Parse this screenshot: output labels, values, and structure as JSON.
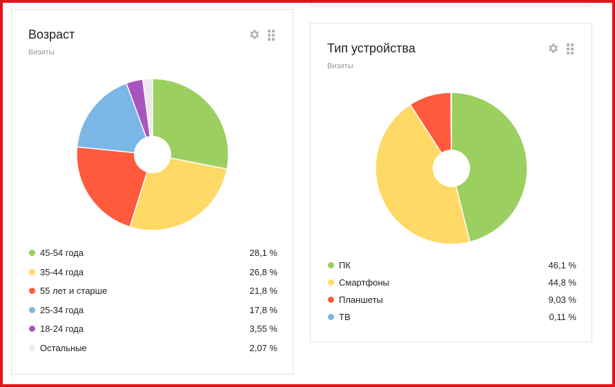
{
  "chart_data": [
    {
      "type": "pie",
      "title": "Возраст",
      "subtitle": "Визиты",
      "slices": [
        {
          "label": "45-54 года",
          "value": 28.1,
          "display": "28,1 %",
          "color": "#9bcf5f"
        },
        {
          "label": "35-44 года",
          "value": 26.8,
          "display": "26,8 %",
          "color": "#ffd966"
        },
        {
          "label": "55 лет и старше",
          "value": 21.8,
          "display": "21,8 %",
          "color": "#ff5a3c"
        },
        {
          "label": "25-34 года",
          "value": 17.8,
          "display": "17,8 %",
          "color": "#7ab6e6"
        },
        {
          "label": "18-24 года",
          "value": 3.55,
          "display": "3,55 %",
          "color": "#a855c0"
        },
        {
          "label": "Остальные",
          "value": 2.07,
          "display": "2,07 %",
          "color": "#ebebeb"
        }
      ]
    },
    {
      "type": "pie",
      "title": "Тип устройства",
      "subtitle": "Визиты",
      "slices": [
        {
          "label": "ПК",
          "value": 46.1,
          "display": "46,1 %",
          "color": "#9bcf5f"
        },
        {
          "label": "Смартфоны",
          "value": 44.8,
          "display": "44,8 %",
          "color": "#ffd966"
        },
        {
          "label": "Планшеты",
          "value": 9.03,
          "display": "9,03 %",
          "color": "#ff5a3c"
        },
        {
          "label": "ТВ",
          "value": 0.11,
          "display": "0,11 %",
          "color": "#7ab6e6"
        }
      ]
    }
  ],
  "icons": {
    "settings": "gear-icon",
    "drag": "drag-handle-icon",
    "color": "#b3b3b3"
  },
  "frame_color": "#e3131b"
}
